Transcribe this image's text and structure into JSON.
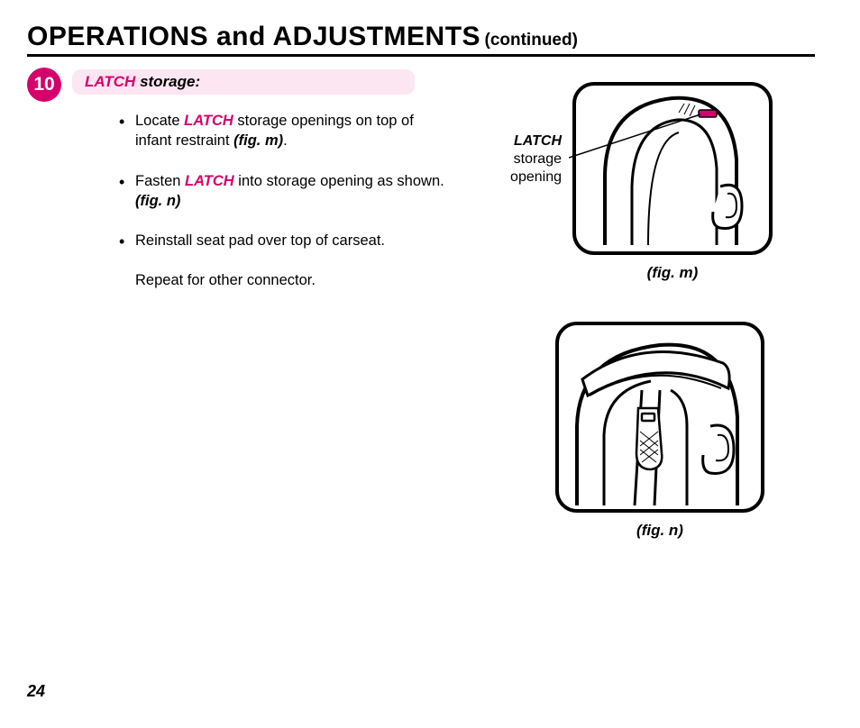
{
  "colors": {
    "magenta": "#d6006c",
    "magenta_light": "#fce6f1",
    "black": "#000000",
    "white": "#ffffff"
  },
  "title": {
    "main": "OPERATIONS and ADJUSTMENTS",
    "continued": "(continued)"
  },
  "step": {
    "number": "10",
    "heading_prefix": "LATCH",
    "heading_rest": " storage:"
  },
  "bullets": [
    {
      "pre": "Locate ",
      "em": "LATCH",
      "post": " storage openings on top of infant restraint ",
      "figref": "(fig. m)",
      "tail": "."
    },
    {
      "pre": "Fasten ",
      "em": "LATCH",
      "post": " into storage opening as shown. ",
      "figref": "(fig. n)",
      "tail": ""
    },
    {
      "pre": "Reinstall seat pad over top of carseat.",
      "em": "",
      "post": "",
      "figref": "",
      "tail": ""
    },
    {
      "plain": "Repeat for other connector.",
      "no_dot": true
    }
  ],
  "fig_m": {
    "side_label_bold": "LATCH",
    "side_label_l2": "storage",
    "side_label_l3": "opening",
    "caption": "(fig. m)"
  },
  "fig_n": {
    "caption": "(fig. n)"
  },
  "page_number": "24"
}
